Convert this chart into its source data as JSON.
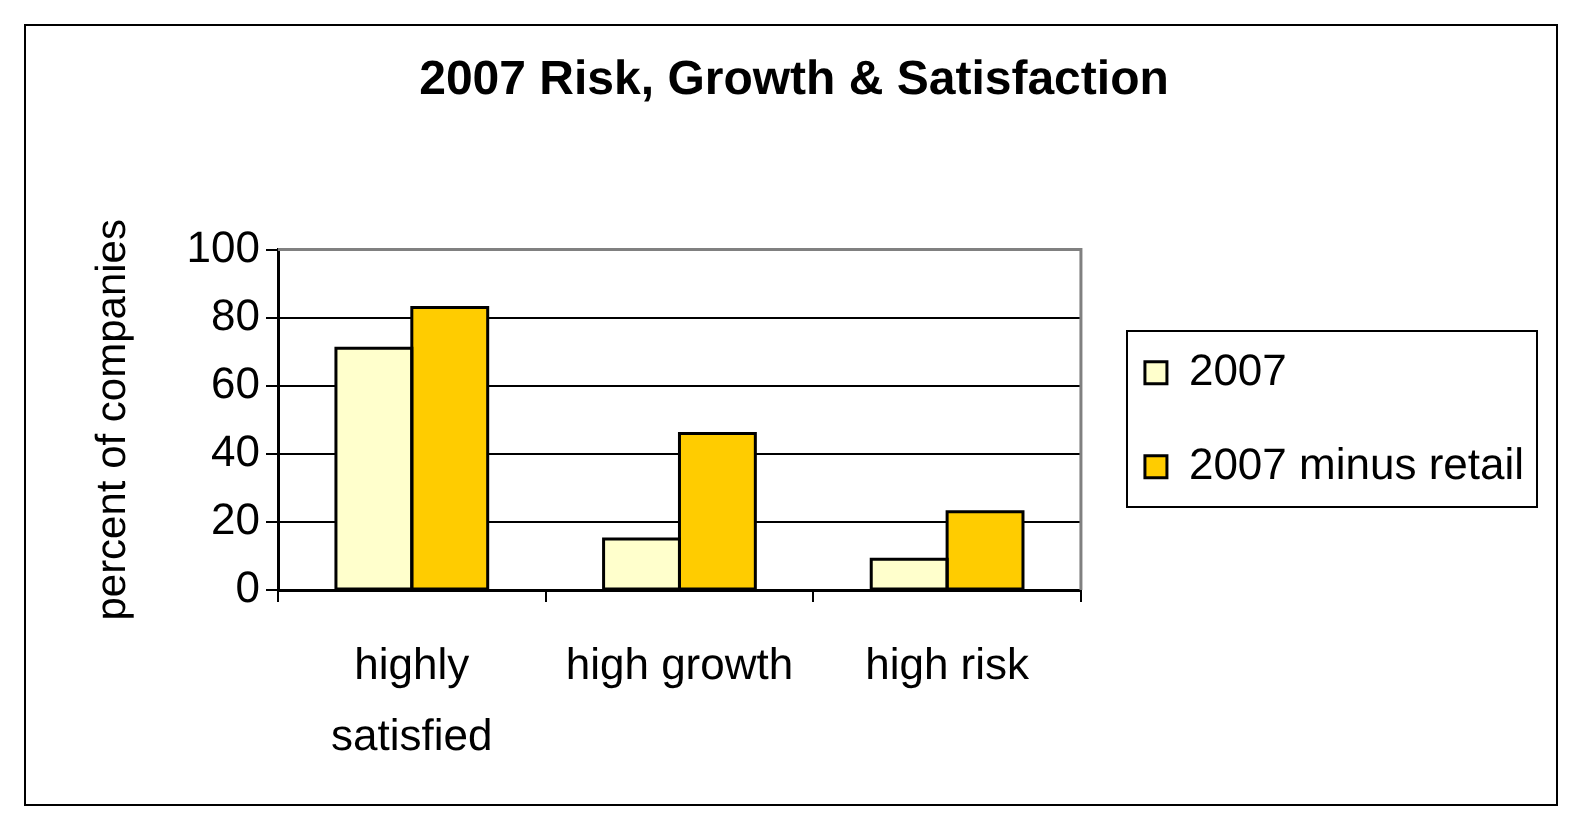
{
  "chart_data": {
    "type": "bar",
    "title": "2007 Risk, Growth & Satisfaction",
    "ylabel": "percent of companies",
    "categories": [
      "highly satisfied",
      "high growth",
      "high risk"
    ],
    "series": [
      {
        "name": "2007",
        "color": "#ffffcc",
        "values": [
          71,
          15,
          9
        ]
      },
      {
        "name": "2007 minus retail",
        "color": "#ffcc00",
        "values": [
          83,
          46,
          23
        ]
      }
    ],
    "ylim": [
      0,
      100
    ],
    "yticks": [
      0,
      20,
      40,
      60,
      80,
      100
    ],
    "grid": "y",
    "legend": "right"
  }
}
